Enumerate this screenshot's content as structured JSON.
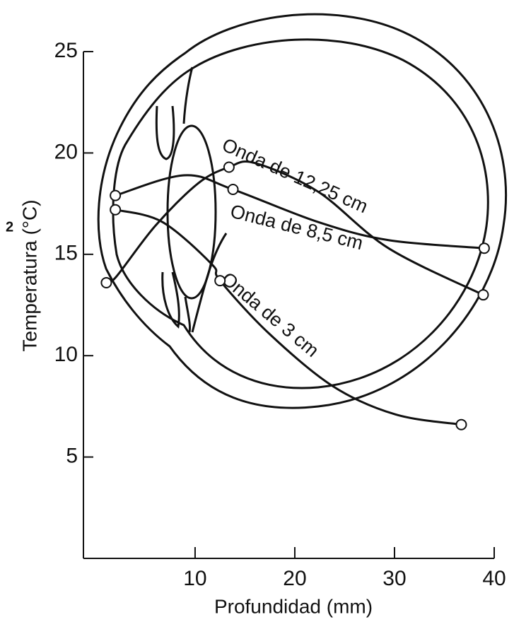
{
  "chart_data": {
    "type": "line",
    "x_label": "Profundidad (mm)",
    "y_label": "Temperatura (°C)",
    "side_note": "2",
    "xlim": [
      -1.2,
      40
    ],
    "ylim": [
      0,
      25
    ],
    "xticks": [
      10,
      20,
      30,
      40
    ],
    "yticks": [
      5,
      10,
      15,
      20,
      25
    ],
    "color": "#111111",
    "series": [
      {
        "name": "Onda de 12,25 cm",
        "x": [
          1.1,
          2.1,
          6.0,
          10.3,
          13.4,
          16.0,
          22.3,
          29.4,
          38.9
        ],
        "values": [
          13.6,
          13.9,
          16.4,
          18.5,
          19.3,
          19.5,
          18.1,
          15.3,
          13.0
        ]
      },
      {
        "name": "Onda de 8,5 cm",
        "x": [
          2.0,
          8.9,
          13.8,
          22.3,
          29.4,
          39.0
        ],
        "values": [
          17.9,
          18.9,
          18.2,
          16.6,
          15.7,
          15.3
        ]
      },
      {
        "name": "Onda de 3 cm",
        "x": [
          2.0,
          6.7,
          11.7,
          12.5,
          17.4,
          23.8,
          30.1,
          36.7
        ],
        "values": [
          17.2,
          16.6,
          14.5,
          13.7,
          11.1,
          8.5,
          7.1,
          6.6
        ]
      }
    ],
    "points": {
      "x": [
        1.1,
        2.0,
        2.0,
        13.4,
        13.8,
        12.5,
        38.9,
        39.0,
        36.7
      ],
      "values": [
        13.6,
        17.9,
        17.2,
        19.3,
        18.2,
        13.7,
        13.0,
        15.3,
        6.6
      ]
    }
  }
}
